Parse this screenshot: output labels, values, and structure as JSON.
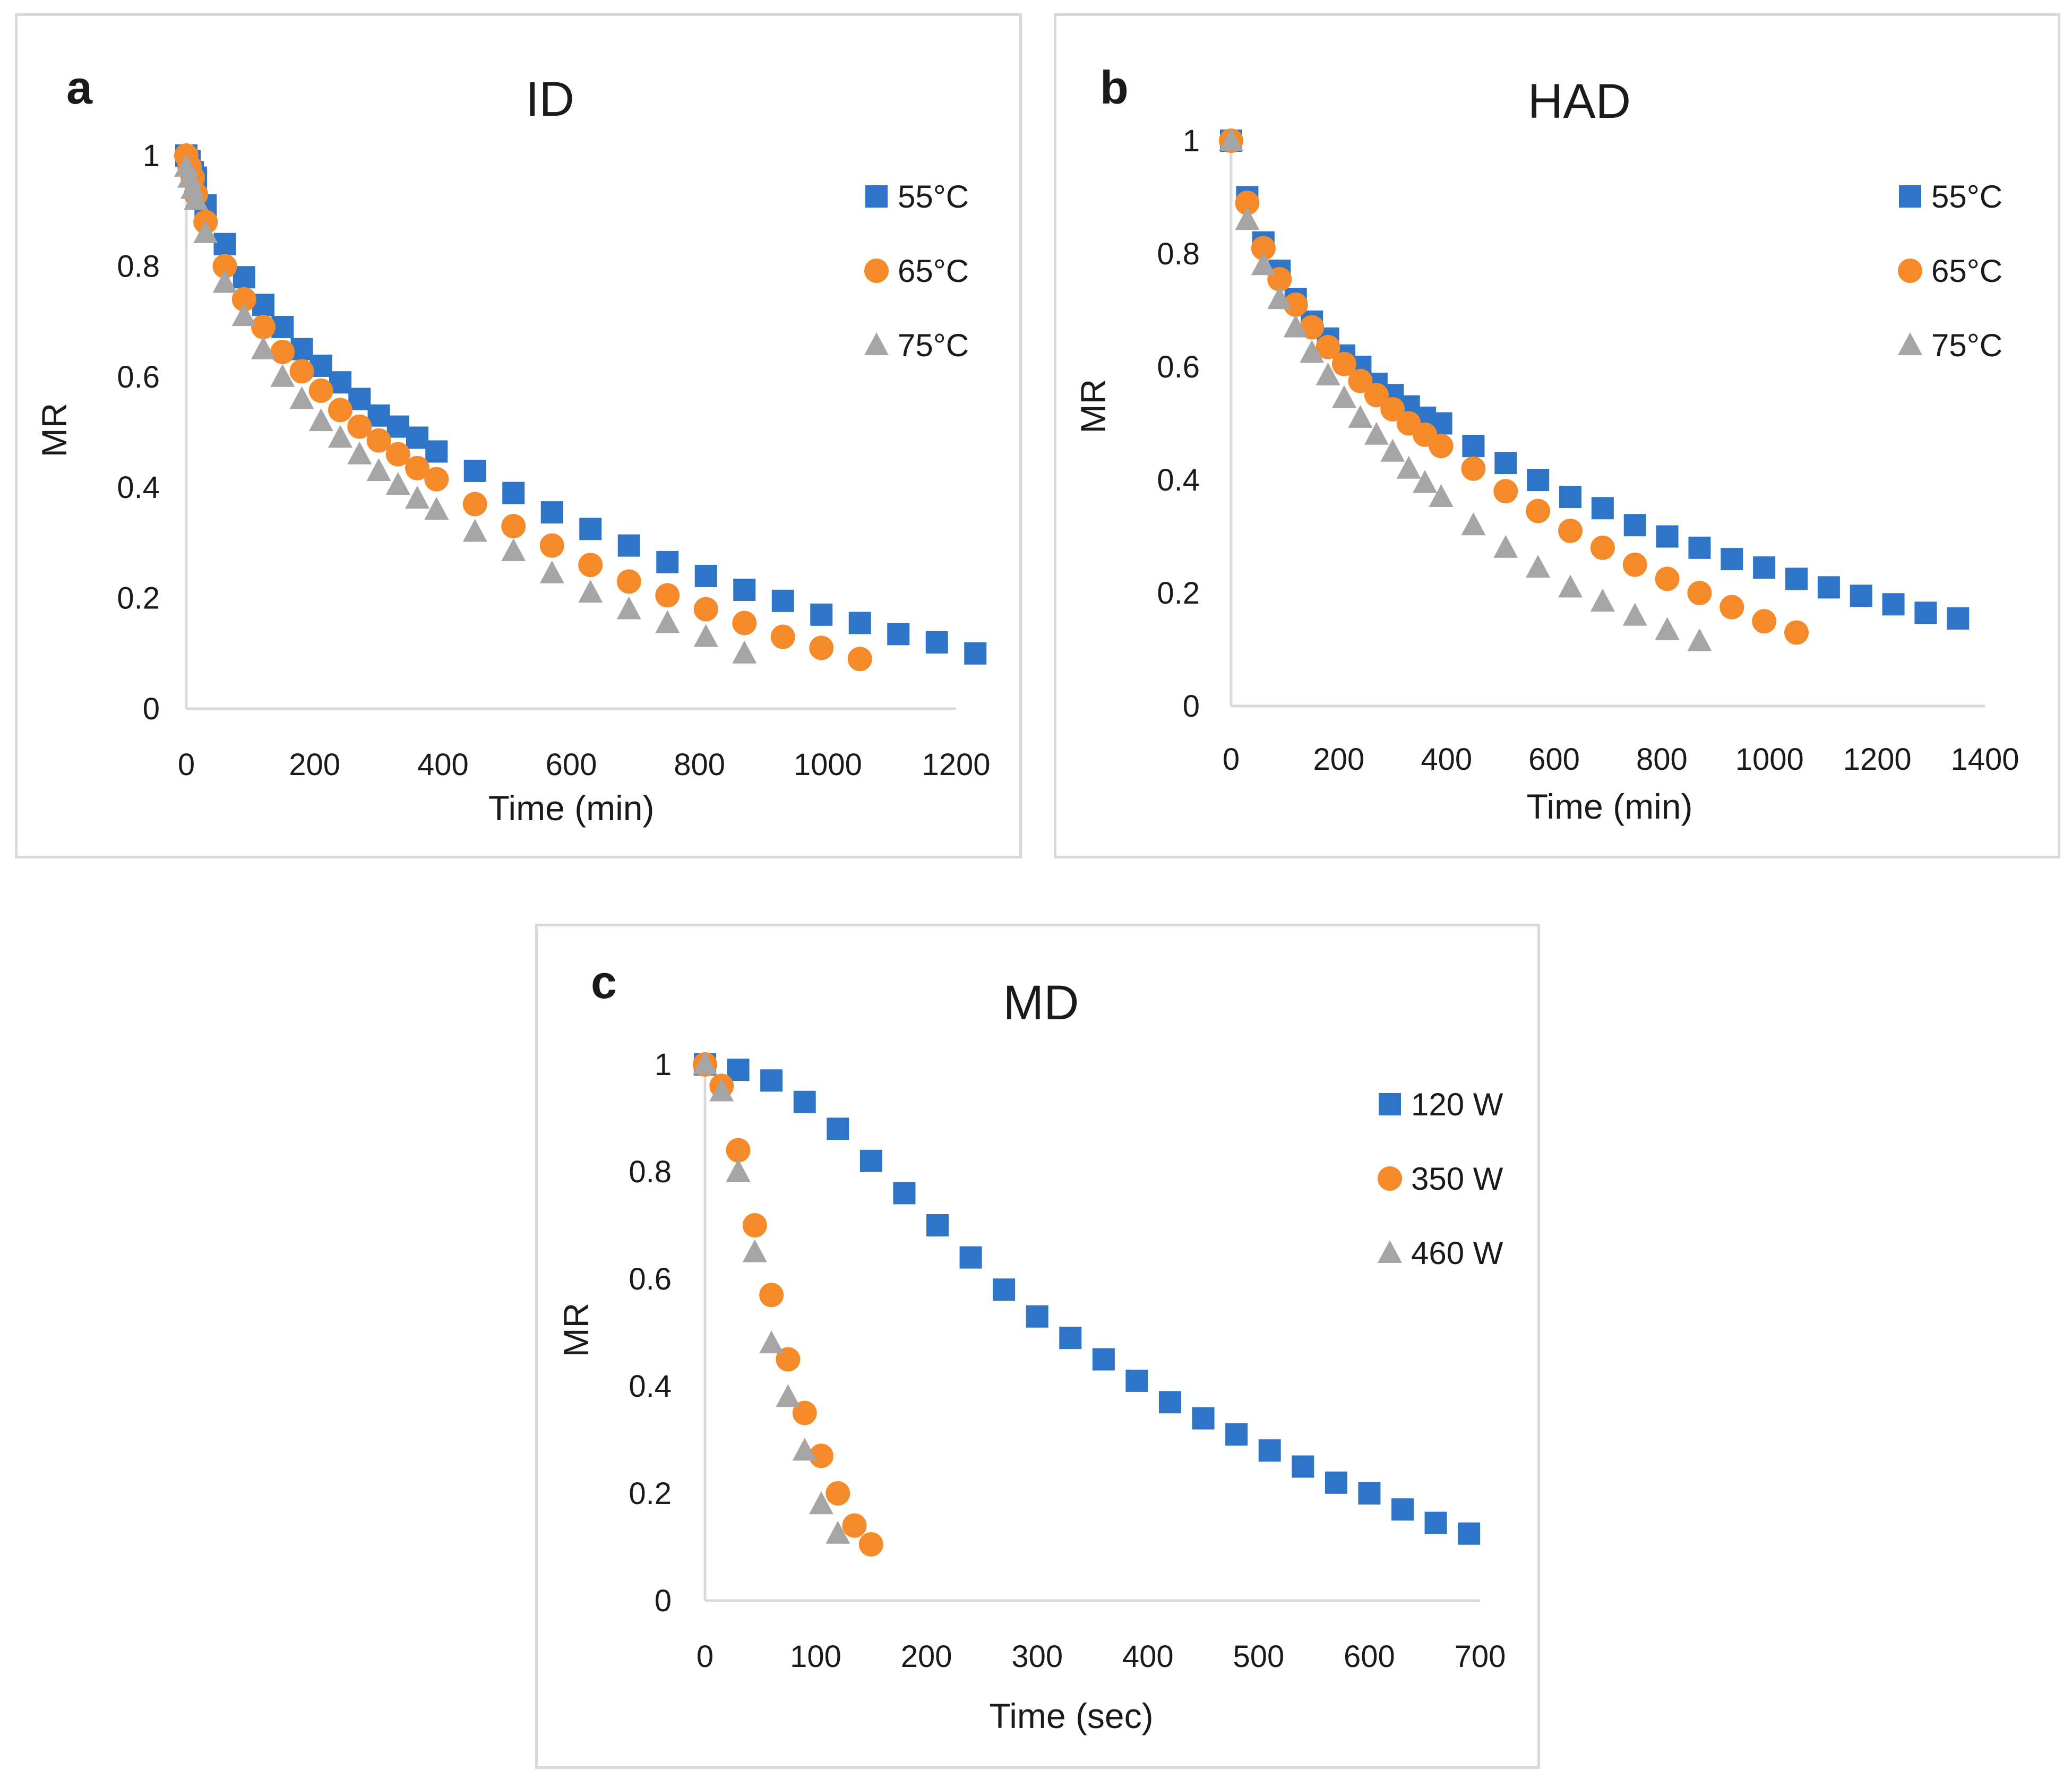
{
  "chart_data": [
    {
      "type": "scatter",
      "panel_label": "a",
      "title": "ID",
      "xlabel": "Time (min)",
      "ylabel": "MR",
      "xlim": [
        0,
        1200
      ],
      "ylim": [
        0,
        1
      ],
      "xticks": [
        "0",
        "200",
        "400",
        "600",
        "800",
        "1000",
        "1200"
      ],
      "yticks": [
        "0",
        "0.2",
        "0.4",
        "0.6",
        "0.8",
        "1"
      ],
      "legend_position": "top-right",
      "series": [
        {
          "name": "55°C",
          "color": "#2e75c8",
          "marker": "square",
          "x": [
            0,
            5,
            10,
            15,
            30,
            60,
            90,
            120,
            150,
            180,
            210,
            240,
            270,
            300,
            330,
            360,
            390,
            450,
            510,
            570,
            630,
            690,
            750,
            810,
            870,
            930,
            990,
            1050,
            1110,
            1170,
            1230
          ],
          "y": [
            1.0,
            0.99,
            0.97,
            0.96,
            0.91,
            0.84,
            0.78,
            0.73,
            0.69,
            0.65,
            0.62,
            0.59,
            0.56,
            0.53,
            0.51,
            0.49,
            0.465,
            0.43,
            0.39,
            0.355,
            0.325,
            0.295,
            0.265,
            0.24,
            0.215,
            0.195,
            0.17,
            0.155,
            0.135,
            0.12,
            0.1
          ]
        },
        {
          "name": "65°C",
          "color": "#f58a2b",
          "marker": "circle",
          "x": [
            0,
            5,
            10,
            15,
            30,
            60,
            90,
            120,
            150,
            180,
            210,
            240,
            270,
            300,
            330,
            360,
            390,
            450,
            510,
            570,
            630,
            690,
            750,
            810,
            870,
            930,
            990,
            1050
          ],
          "y": [
            1.0,
            0.98,
            0.96,
            0.93,
            0.88,
            0.8,
            0.74,
            0.69,
            0.645,
            0.61,
            0.575,
            0.54,
            0.51,
            0.485,
            0.46,
            0.435,
            0.415,
            0.37,
            0.33,
            0.295,
            0.26,
            0.23,
            0.205,
            0.18,
            0.155,
            0.13,
            0.11,
            0.09
          ]
        },
        {
          "name": "75°C",
          "color": "#a5a5a5",
          "marker": "triangle",
          "x": [
            0,
            5,
            10,
            15,
            30,
            60,
            90,
            120,
            150,
            180,
            210,
            240,
            270,
            300,
            330,
            360,
            390,
            450,
            510,
            570,
            630,
            690,
            750,
            810,
            870
          ],
          "y": [
            0.98,
            0.96,
            0.94,
            0.92,
            0.86,
            0.77,
            0.71,
            0.65,
            0.6,
            0.56,
            0.52,
            0.49,
            0.46,
            0.43,
            0.405,
            0.38,
            0.36,
            0.32,
            0.285,
            0.245,
            0.21,
            0.18,
            0.155,
            0.13,
            0.1
          ]
        }
      ]
    },
    {
      "type": "scatter",
      "panel_label": "b",
      "title": "HAD",
      "xlabel": "Time (min)",
      "ylabel": "MR",
      "xlim": [
        0,
        1400
      ],
      "ylim": [
        0,
        1
      ],
      "xticks": [
        "0",
        "200",
        "400",
        "600",
        "800",
        "1000",
        "1200",
        "1400"
      ],
      "yticks": [
        "0",
        "0.2",
        "0.4",
        "0.6",
        "0.8",
        "1"
      ],
      "legend_position": "top-right",
      "series": [
        {
          "name": "55°C",
          "color": "#2e75c8",
          "marker": "square",
          "x": [
            0,
            30,
            60,
            90,
            120,
            150,
            180,
            210,
            240,
            270,
            300,
            330,
            360,
            390,
            450,
            510,
            570,
            630,
            690,
            750,
            810,
            870,
            930,
            990,
            1050,
            1110,
            1170,
            1230,
            1290,
            1350
          ],
          "y": [
            1.0,
            0.9,
            0.82,
            0.77,
            0.72,
            0.68,
            0.65,
            0.62,
            0.6,
            0.57,
            0.55,
            0.53,
            0.51,
            0.5,
            0.46,
            0.43,
            0.4,
            0.37,
            0.35,
            0.32,
            0.3,
            0.28,
            0.26,
            0.245,
            0.225,
            0.21,
            0.195,
            0.18,
            0.165,
            0.155
          ]
        },
        {
          "name": "65°C",
          "color": "#f58a2b",
          "marker": "circle",
          "x": [
            0,
            30,
            60,
            90,
            120,
            150,
            180,
            210,
            240,
            270,
            300,
            330,
            360,
            390,
            450,
            510,
            570,
            630,
            690,
            750,
            810,
            870,
            930,
            990,
            1050
          ],
          "y": [
            1.0,
            0.89,
            0.81,
            0.755,
            0.71,
            0.67,
            0.635,
            0.605,
            0.575,
            0.55,
            0.525,
            0.5,
            0.48,
            0.46,
            0.42,
            0.38,
            0.345,
            0.31,
            0.28,
            0.25,
            0.225,
            0.2,
            0.175,
            0.15,
            0.13
          ]
        },
        {
          "name": "75°C",
          "color": "#a5a5a5",
          "marker": "triangle",
          "x": [
            0,
            30,
            60,
            90,
            120,
            150,
            180,
            210,
            240,
            270,
            300,
            330,
            360,
            390,
            450,
            510,
            570,
            630,
            690,
            750,
            810,
            870
          ],
          "y": [
            1.0,
            0.86,
            0.78,
            0.72,
            0.67,
            0.625,
            0.585,
            0.545,
            0.51,
            0.48,
            0.45,
            0.42,
            0.395,
            0.37,
            0.32,
            0.28,
            0.245,
            0.21,
            0.185,
            0.16,
            0.135,
            0.115
          ]
        }
      ]
    },
    {
      "type": "scatter",
      "panel_label": "c",
      "title": "MD",
      "xlabel": "Time (sec)",
      "ylabel": "MR",
      "xlim": [
        0,
        700
      ],
      "ylim": [
        0,
        1
      ],
      "xticks": [
        "0",
        "100",
        "200",
        "300",
        "400",
        "500",
        "600",
        "700"
      ],
      "yticks": [
        "0",
        "0.2",
        "0.4",
        "0.6",
        "0.8",
        "1"
      ],
      "legend_position": "top-right",
      "series": [
        {
          "name": "120 W",
          "color": "#2e75c8",
          "marker": "square",
          "x": [
            0,
            30,
            60,
            90,
            120,
            150,
            180,
            210,
            240,
            270,
            300,
            330,
            360,
            390,
            420,
            450,
            480,
            510,
            540,
            570,
            600,
            630,
            660,
            690
          ],
          "y": [
            1.0,
            0.99,
            0.97,
            0.93,
            0.88,
            0.82,
            0.76,
            0.7,
            0.64,
            0.58,
            0.53,
            0.49,
            0.45,
            0.41,
            0.37,
            0.34,
            0.31,
            0.28,
            0.25,
            0.22,
            0.2,
            0.17,
            0.145,
            0.125
          ]
        },
        {
          "name": "350 W",
          "color": "#f58a2b",
          "marker": "circle",
          "x": [
            0,
            15,
            30,
            45,
            60,
            75,
            90,
            105,
            120,
            135,
            150
          ],
          "y": [
            1.0,
            0.96,
            0.84,
            0.7,
            0.57,
            0.45,
            0.35,
            0.27,
            0.2,
            0.14,
            0.105
          ]
        },
        {
          "name": "460 W",
          "color": "#a5a5a5",
          "marker": "triangle",
          "x": [
            0,
            15,
            30,
            45,
            60,
            75,
            90,
            105,
            120
          ],
          "y": [
            1.0,
            0.95,
            0.8,
            0.65,
            0.48,
            0.38,
            0.28,
            0.18,
            0.125
          ]
        }
      ]
    }
  ]
}
